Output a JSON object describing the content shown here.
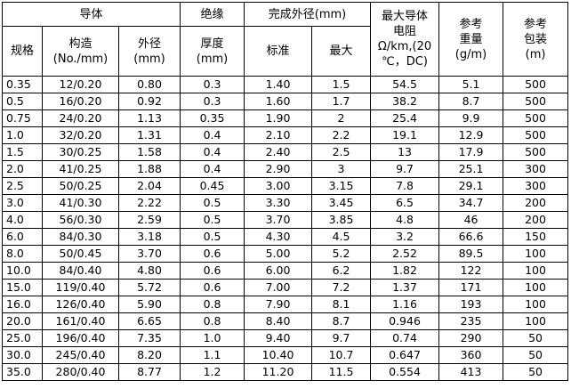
{
  "header": {
    "conductor": "导体",
    "insulation": "绝缘",
    "finished_od": "完成外径(mm)",
    "resistance": [
      "最大导体",
      "电阻",
      "Ω/km,(20",
      "℃，DC)"
    ],
    "weight": [
      "参考",
      "重量",
      "(g/m)"
    ],
    "package": [
      "参考",
      "包装",
      "(m)"
    ],
    "spec": [
      "规格"
    ],
    "structure": [
      "构造",
      "(No./mm)"
    ],
    "od": [
      "外径",
      "(mm)"
    ],
    "thickness": [
      "厚度",
      "(mm)"
    ],
    "standard": [
      "标准"
    ],
    "max": [
      "最大"
    ]
  },
  "table": {
    "rows": [
      [
        "0.35",
        "12/0.20",
        "0.80",
        "0.3",
        "1.40",
        "1.5",
        "54.5",
        "5.1",
        "500"
      ],
      [
        "0.5",
        "16/0.20",
        "0.92",
        "0.3",
        "1.60",
        "1.7",
        "38.2",
        "8.7",
        "500"
      ],
      [
        "0.75",
        "24/0.20",
        "1.13",
        "0.35",
        "1.90",
        "2",
        "25.4",
        "9.9",
        "500"
      ],
      [
        "1.0",
        "32/0.20",
        "1.31",
        "0.4",
        "2.10",
        "2.2",
        "19.1",
        "12.9",
        "500"
      ],
      [
        "1.5",
        "30/0.25",
        "1.58",
        "0.4",
        "2.40",
        "2.5",
        "13",
        "17.9",
        "500"
      ],
      [
        "2.0",
        "41/0.25",
        "1.88",
        "0.4",
        "2.90",
        "3",
        "9.7",
        "25.1",
        "300"
      ],
      [
        "2.5",
        "50/0.25",
        "2.04",
        "0.45",
        "3.00",
        "3.15",
        "7.8",
        "29.1",
        "300"
      ],
      [
        "3.0",
        "41/0.30",
        "2.22",
        "0.5",
        "3.30",
        "3.45",
        "6.5",
        "34.7",
        "200"
      ],
      [
        "4.0",
        "56/0.30",
        "2.59",
        "0.5",
        "3.70",
        "3.85",
        "4.8",
        "46",
        "200"
      ],
      [
        "6.0",
        "84/0.30",
        "3.18",
        "0.5",
        "4.30",
        "4.5",
        "3.2",
        "66.6",
        "150"
      ],
      [
        "8.0",
        "50/0.45",
        "3.70",
        "0.6",
        "5.00",
        "5.2",
        "2.52",
        "89.5",
        "100"
      ],
      [
        "10.0",
        "84/0.40",
        "4.80",
        "0.6",
        "6.00",
        "6.2",
        "1.82",
        "122",
        "100"
      ],
      [
        "15.0",
        "119/0.40",
        "5.72",
        "0.6",
        "7.00",
        "7.2",
        "1.37",
        "171",
        "100"
      ],
      [
        "16.0",
        "126/0.40",
        "5.90",
        "0.8",
        "7.90",
        "8.1",
        "1.16",
        "193",
        "100"
      ],
      [
        "20.0",
        "161/0.40",
        "6.65",
        "0.8",
        "8.40",
        "8.7",
        "0.946",
        "235",
        "100"
      ],
      [
        "25.0",
        "196/0.40",
        "7.35",
        "1.0",
        "9.40",
        "9.7",
        "0.74",
        "290",
        "50"
      ],
      [
        "30.0",
        "245/0.40",
        "8.20",
        "1.1",
        "10.40",
        "10.7",
        "0.647",
        "360",
        "50"
      ],
      [
        "35.0",
        "280/0.40",
        "8.77",
        "1.2",
        "11.20",
        "11.5",
        "0.554",
        "413",
        "50"
      ]
    ]
  }
}
